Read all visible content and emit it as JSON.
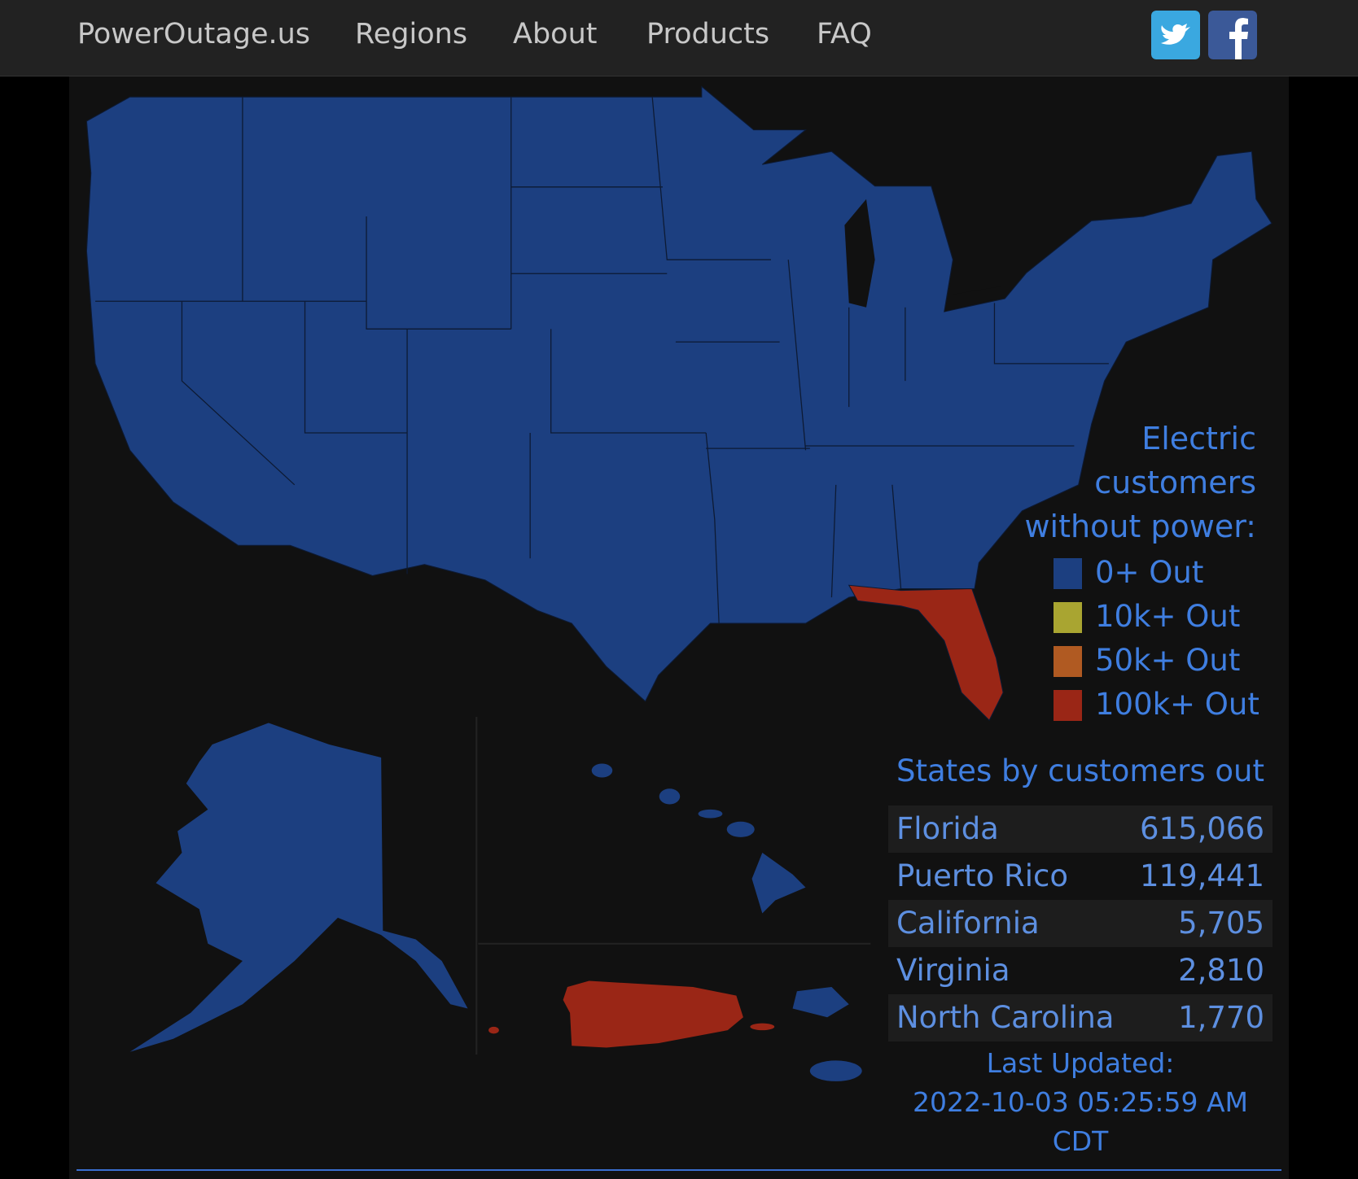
{
  "nav": {
    "brand": "PowerOutage.us",
    "links": [
      "Regions",
      "About",
      "Products",
      "FAQ"
    ]
  },
  "legend": {
    "title": "Electric customers without power:",
    "items": [
      {
        "label": "0+ Out",
        "color": "#1c3f80"
      },
      {
        "label": "10k+ Out",
        "color": "#a9a531"
      },
      {
        "label": "50k+ Out",
        "color": "#b05a22"
      },
      {
        "label": "100k+ Out",
        "color": "#9a2616"
      }
    ]
  },
  "table": {
    "title": "States by customers out",
    "rows": [
      [
        "Florida",
        "615,066"
      ],
      [
        "Puerto Rico",
        "119,441"
      ],
      [
        "California",
        "5,705"
      ],
      [
        "Virginia",
        "2,810"
      ],
      [
        "North Carolina",
        "1,770"
      ]
    ]
  },
  "updated": {
    "label": "Last Updated:",
    "value": "2022-10-03 05:25:59 AM CDT"
  }
}
